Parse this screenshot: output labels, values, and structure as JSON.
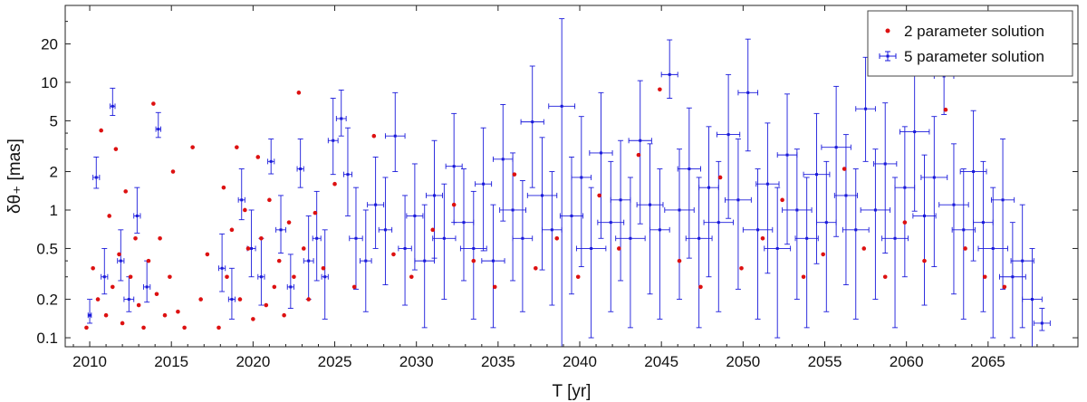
{
  "chart_data": {
    "type": "scatter",
    "xlabel": "T [yr]",
    "ylabel": "δθ₊ [mas]",
    "xlim": [
      2008.5,
      2070.5
    ],
    "ylim": [
      0.085,
      40
    ],
    "yscale": "log",
    "grid": false,
    "legend_position": "top-right",
    "x_ticks": [
      2010,
      2015,
      2020,
      2025,
      2030,
      2035,
      2040,
      2045,
      2050,
      2055,
      2060,
      2065
    ],
    "x_tick_labels": [
      "2010",
      "2015",
      "2020",
      "2025",
      "2030",
      "2035",
      "2040",
      "2045",
      "2050",
      "2055",
      "2060",
      "2065"
    ],
    "y_ticks": [
      0.1,
      0.2,
      0.5,
      1,
      2,
      5,
      10,
      20
    ],
    "y_tick_labels": [
      "0.1",
      "0.2",
      "0.5",
      "1",
      "2",
      "5",
      "10",
      "20"
    ],
    "series": [
      {
        "name": "2 parameter solution",
        "color": "#dd1111",
        "marker": "dot",
        "x": [
          2009.8,
          2010.2,
          2010.5,
          2010.7,
          2011.0,
          2011.2,
          2011.4,
          2011.6,
          2011.8,
          2012.0,
          2012.2,
          2012.5,
          2012.8,
          2013.0,
          2013.3,
          2013.6,
          2013.9,
          2014.1,
          2014.3,
          2014.6,
          2014.9,
          2015.1,
          2015.4,
          2015.8,
          2016.3,
          2016.8,
          2017.2,
          2017.9,
          2018.2,
          2018.4,
          2018.7,
          2019.0,
          2019.2,
          2019.5,
          2019.7,
          2020.0,
          2020.3,
          2020.5,
          2020.8,
          2021.0,
          2021.3,
          2021.6,
          2021.9,
          2022.2,
          2022.5,
          2022.8,
          2023.1,
          2023.4,
          2023.8,
          2024.3,
          2025.0,
          2026.2,
          2027.4,
          2028.6,
          2029.7,
          2031.0,
          2032.3,
          2033.5,
          2034.8,
          2036.0,
          2037.3,
          2038.6,
          2039.9,
          2041.2,
          2042.4,
          2043.6,
          2044.9,
          2046.1,
          2047.4,
          2048.6,
          2049.9,
          2051.2,
          2052.4,
          2053.7,
          2054.9,
          2056.2,
          2057.4,
          2058.7,
          2059.9,
          2061.1,
          2062.4,
          2063.6,
          2064.8,
          2066.0
        ],
        "y": [
          0.12,
          0.35,
          0.2,
          4.2,
          0.15,
          0.9,
          0.25,
          3.0,
          0.45,
          0.13,
          1.4,
          0.3,
          0.6,
          0.18,
          0.12,
          0.4,
          6.8,
          0.22,
          0.6,
          0.15,
          0.3,
          2.0,
          0.16,
          0.12,
          3.1,
          0.2,
          0.45,
          0.12,
          1.5,
          0.3,
          0.7,
          3.1,
          0.2,
          1.0,
          0.5,
          0.14,
          2.6,
          0.6,
          0.18,
          1.2,
          0.25,
          0.4,
          0.15,
          0.8,
          0.3,
          8.3,
          0.5,
          0.2,
          0.95,
          0.35,
          1.6,
          0.25,
          3.8,
          0.45,
          0.3,
          0.7,
          1.1,
          0.4,
          0.25,
          1.9,
          0.35,
          0.6,
          0.3,
          1.3,
          0.5,
          2.7,
          8.8,
          0.4,
          0.25,
          1.8,
          0.35,
          0.6,
          1.2,
          0.3,
          0.45,
          2.1,
          0.5,
          0.3,
          0.8,
          0.4,
          6.1,
          0.5,
          0.3,
          0.25
        ]
      },
      {
        "name": "5 parameter solution",
        "color": "#1a1adb",
        "marker": "errorbar",
        "x": [
          2010.0,
          2010.4,
          2010.9,
          2011.4,
          2011.9,
          2012.4,
          2012.9,
          2013.5,
          2014.2,
          2018.1,
          2018.7,
          2019.3,
          2019.9,
          2020.5,
          2021.1,
          2021.7,
          2022.3,
          2022.9,
          2023.4,
          2023.9,
          2024.4,
          2024.9,
          2025.4,
          2025.8,
          2026.3,
          2026.9,
          2027.5,
          2028.1,
          2028.7,
          2029.3,
          2029.9,
          2030.5,
          2031.1,
          2031.7,
          2032.3,
          2032.9,
          2033.5,
          2034.1,
          2034.7,
          2035.3,
          2035.9,
          2036.5,
          2037.1,
          2037.7,
          2038.3,
          2038.9,
          2039.5,
          2040.1,
          2040.7,
          2041.3,
          2041.9,
          2042.5,
          2043.1,
          2043.7,
          2044.3,
          2044.9,
          2045.5,
          2046.1,
          2046.7,
          2047.3,
          2047.9,
          2048.5,
          2049.1,
          2049.7,
          2050.3,
          2050.9,
          2051.5,
          2052.1,
          2052.7,
          2053.3,
          2053.9,
          2054.5,
          2055.1,
          2055.7,
          2056.3,
          2056.9,
          2057.5,
          2058.1,
          2058.7,
          2059.3,
          2059.9,
          2060.5,
          2061.1,
          2061.7,
          2062.3,
          2062.9,
          2063.5,
          2064.1,
          2064.7,
          2065.3,
          2065.9,
          2066.5,
          2067.1,
          2067.7,
          2068.3
        ],
        "y": [
          0.15,
          1.8,
          0.3,
          6.5,
          0.4,
          0.2,
          0.9,
          0.25,
          4.3,
          0.35,
          0.2,
          1.2,
          0.5,
          0.3,
          2.4,
          0.7,
          0.25,
          2.1,
          0.4,
          0.6,
          0.3,
          3.5,
          5.2,
          1.9,
          0.6,
          0.4,
          1.1,
          0.7,
          3.8,
          0.5,
          0.9,
          0.4,
          1.3,
          0.6,
          2.2,
          0.8,
          0.5,
          1.6,
          0.4,
          2.5,
          1.0,
          0.6,
          4.9,
          1.3,
          0.7,
          6.5,
          0.9,
          1.8,
          0.5,
          2.8,
          0.8,
          1.2,
          0.6,
          3.5,
          1.1,
          0.7,
          11.5,
          1.0,
          2.1,
          0.6,
          1.5,
          0.8,
          3.9,
          1.2,
          8.3,
          0.7,
          1.6,
          0.5,
          2.7,
          1.0,
          0.6,
          1.9,
          0.8,
          3.1,
          1.3,
          0.7,
          6.2,
          1.0,
          2.3,
          0.6,
          1.5,
          4.1,
          0.9,
          1.8,
          11.2,
          1.1,
          0.7,
          2.0,
          0.8,
          0.5,
          1.2,
          0.3,
          0.4,
          0.2,
          0.13
        ],
        "y_err_up": [
          0.05,
          0.8,
          0.2,
          2.5,
          0.3,
          0.1,
          0.6,
          0.15,
          1.5,
          0.3,
          0.15,
          0.9,
          0.5,
          0.3,
          1.2,
          0.6,
          0.2,
          1.5,
          0.5,
          0.8,
          0.4,
          4.0,
          3.5,
          2.5,
          0.9,
          0.6,
          1.5,
          1.1,
          4.5,
          0.8,
          1.4,
          0.7,
          2.2,
          1.0,
          3.5,
          1.3,
          0.9,
          2.8,
          0.7,
          4.2,
          1.8,
          1.1,
          8.5,
          2.4,
          1.3,
          25.0,
          1.7,
          3.6,
          1.0,
          5.5,
          1.6,
          2.3,
          1.2,
          6.8,
          2.2,
          1.4,
          10.0,
          2.0,
          4.2,
          1.2,
          3.0,
          1.6,
          7.6,
          2.4,
          13.5,
          1.4,
          3.2,
          1.0,
          5.4,
          2.0,
          1.2,
          3.8,
          1.6,
          6.2,
          2.6,
          1.4,
          9.5,
          2.0,
          4.6,
          1.2,
          3.0,
          7.8,
          1.8,
          3.6,
          14.0,
          2.2,
          1.4,
          4.0,
          1.6,
          1.0,
          2.4,
          0.5,
          0.7,
          0.3,
          0.04
        ],
        "x_err": [
          0.1,
          0.2,
          0.2,
          0.15,
          0.2,
          0.3,
          0.2,
          0.2,
          0.15,
          0.2,
          0.2,
          0.2,
          0.25,
          0.2,
          0.2,
          0.3,
          0.2,
          0.2,
          0.3,
          0.25,
          0.2,
          0.3,
          0.3,
          0.25,
          0.4,
          0.35,
          0.5,
          0.4,
          0.6,
          0.4,
          0.5,
          0.6,
          0.5,
          0.7,
          0.5,
          0.6,
          0.8,
          0.5,
          0.7,
          0.6,
          0.8,
          0.6,
          0.7,
          0.9,
          0.6,
          0.8,
          0.7,
          0.6,
          0.9,
          0.7,
          0.8,
          0.6,
          0.9,
          0.7,
          0.8,
          0.6,
          0.5,
          0.9,
          0.7,
          0.8,
          0.6,
          0.9,
          0.7,
          0.8,
          0.6,
          0.9,
          0.7,
          0.8,
          0.6,
          0.9,
          0.7,
          0.8,
          0.6,
          0.9,
          0.7,
          0.8,
          0.6,
          0.9,
          0.7,
          0.8,
          0.6,
          0.9,
          0.7,
          0.8,
          0.6,
          0.9,
          0.7,
          0.8,
          0.6,
          0.9,
          0.7,
          0.8,
          0.7,
          0.6,
          0.5
        ]
      }
    ]
  }
}
